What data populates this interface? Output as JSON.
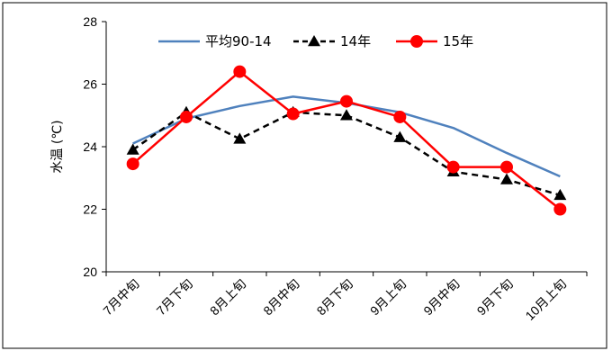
{
  "chart_data": {
    "type": "line",
    "categories": [
      "7月中旬",
      "7月下旬",
      "8月上旬",
      "8月中旬",
      "8月下旬",
      "9月上旬",
      "9月中旬",
      "9月下旬",
      "10月上旬"
    ],
    "ylabel": "水温 (℃)",
    "ylim": [
      20,
      28
    ],
    "yticks": [
      20,
      22,
      24,
      26,
      28
    ],
    "grid": false,
    "legend_position": "top",
    "series": [
      {
        "name": "平均90-14",
        "color": "#4f81bd",
        "dash": "solid",
        "marker": "none",
        "values": [
          24.1,
          24.9,
          25.3,
          25.6,
          25.4,
          25.1,
          24.6,
          23.8,
          23.05
        ]
      },
      {
        "name": "14年",
        "color": "#000000",
        "dash": "dashed",
        "marker": "triangle",
        "values": [
          23.9,
          25.1,
          24.25,
          25.1,
          25.0,
          24.3,
          23.2,
          22.95,
          22.45
        ]
      },
      {
        "name": "15年",
        "color": "#ff0000",
        "dash": "solid",
        "marker": "circle",
        "values": [
          23.45,
          24.95,
          26.4,
          25.05,
          25.45,
          24.95,
          23.35,
          23.35,
          22.0
        ]
      }
    ]
  }
}
